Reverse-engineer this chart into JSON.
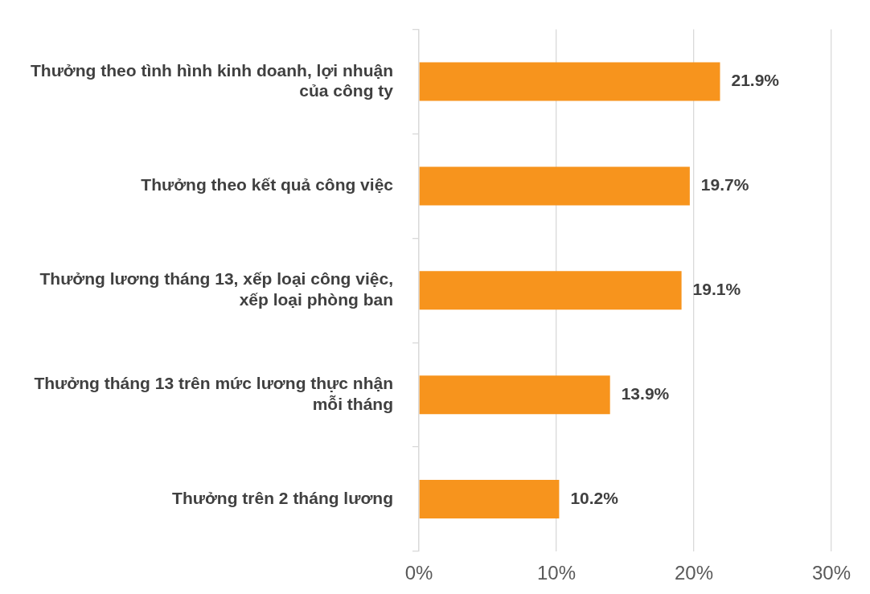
{
  "chart_data": {
    "type": "bar",
    "orientation": "horizontal",
    "categories": [
      "Thưởng theo tình hình kinh doanh, lợi nhuận của công ty",
      "Thưởng theo kết quả công việc",
      "Thưởng lương tháng 13, xếp loại công việc, xếp loại phòng ban",
      "Thưởng tháng 13 trên mức lương thực nhận mỗi tháng",
      "Thưởng trên 2 tháng lương"
    ],
    "values": [
      21.9,
      19.7,
      19.1,
      13.9,
      10.2
    ],
    "value_labels": [
      "21.9%",
      "19.7%",
      "19.1%",
      "13.9%",
      "10.2%"
    ],
    "color": "#f7941d",
    "xlim": [
      0,
      30
    ],
    "xticks": [
      {
        "value": 0,
        "label": "0%"
      },
      {
        "value": 10,
        "label": "10%"
      },
      {
        "value": 20,
        "label": "20%"
      },
      {
        "value": 30,
        "label": "30%"
      }
    ],
    "grid": "x"
  }
}
